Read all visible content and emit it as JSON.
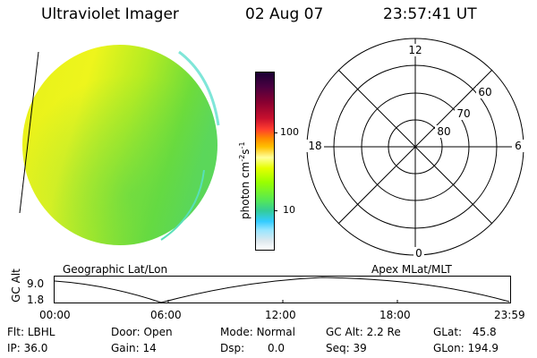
{
  "header": {
    "instrument": "Ultraviolet Imager",
    "date": "02 Aug 07",
    "time": "23:57:41 UT"
  },
  "colorbar": {
    "label": "photon cm-2s-1",
    "label_main": "photon cm",
    "label_sup1": "-2",
    "label_mid": "s",
    "label_sup2": "-1",
    "ticks": [
      "100",
      "10"
    ],
    "scale": "log",
    "colors": [
      "#1a0033",
      "#4a0040",
      "#8a0030",
      "#c8102e",
      "#ff3d2e",
      "#ff8800",
      "#ffc000",
      "#ffff9a",
      "#e5ff00",
      "#99ff00",
      "#55e855",
      "#33cc99",
      "#33ccff",
      "#99e6ff",
      "#dde8ee",
      "#ffffff"
    ]
  },
  "polar_grid": {
    "mlt_labels": [
      "12",
      "18",
      "6",
      "0"
    ],
    "lat_labels": [
      "60",
      "70",
      "80"
    ]
  },
  "coords": {
    "left_label": "Geographic Lat/Lon",
    "right_label": "Apex MLat/MLT"
  },
  "orbit_plot": {
    "ylabel": "GC Alt",
    "y_ticks": [
      "9.0",
      "1.8"
    ],
    "x_ticks": [
      "00:00",
      "06:00",
      "12:00",
      "18:00",
      "23:59"
    ]
  },
  "status": {
    "flt_label": "Flt:",
    "flt_value": "LBHL",
    "ip_label": "IP:",
    "ip_value": "36.0",
    "door_label": "Door:",
    "door_value": "Open",
    "gain_label": "Gain:",
    "gain_value": "14",
    "mode_label": "Mode:",
    "mode_value": "Normal",
    "dsp_label": "Dsp:",
    "dsp_value": "0.0",
    "gcalt_label": "GC Alt:",
    "gcalt_value": "2.2 Re",
    "seq_label": "Seq:",
    "seq_value": "39",
    "glat_label": "GLat:",
    "glat_value": "45.8",
    "glon_label": "GLon:",
    "glon_value": "194.9"
  }
}
